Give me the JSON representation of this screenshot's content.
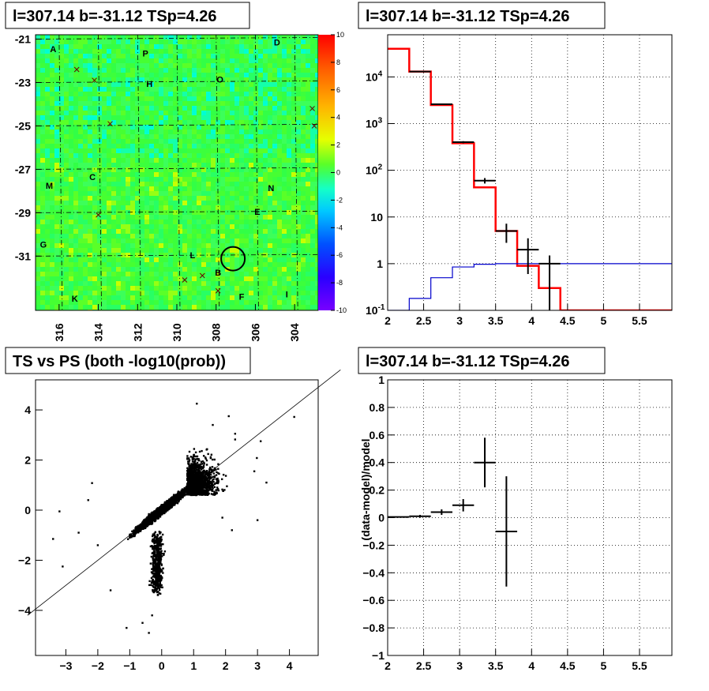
{
  "panels": {
    "top_left_title": "l=307.14 b=-31.12 TSp=4.26",
    "top_right_title": "l=307.14 b=-31.12 TSp=4.26",
    "bottom_left_title": "TS vs PS (both -log10(prob))",
    "bottom_right_title": "l=307.14 b=-31.12 TSp=4.26"
  },
  "colors": {
    "model_line": "#ff0000",
    "blue_line": "#0000cc",
    "data": "#000000",
    "grid": "#000000"
  },
  "chart_data": [
    {
      "type": "heatmap",
      "title": "l=307.14 b=-31.12 TSp=4.26",
      "x_ticks": [
        "316",
        "314",
        "312",
        "310",
        "308",
        "306",
        "304"
      ],
      "y_ticks": [
        "-21",
        "-23",
        "-25",
        "-27",
        "-29",
        "-31"
      ],
      "xlim": [
        317.2,
        302.8
      ],
      "ylim": [
        -33.5,
        -20.8
      ],
      "colorbar": {
        "range": [
          -10,
          10
        ],
        "ticks": [
          "10",
          "8",
          "6",
          "4",
          "2",
          "0",
          "-2",
          "-4",
          "-6",
          "-8",
          "-10"
        ]
      },
      "circle": {
        "l": 307.14,
        "b": -31.12
      },
      "labels": [
        {
          "t": "A",
          "l": 316.3,
          "b": -21.6
        },
        {
          "t": "P",
          "l": 311.6,
          "b": -21.8
        },
        {
          "t": "D",
          "l": 304.9,
          "b": -21.3
        },
        {
          "t": "H",
          "l": 311.4,
          "b": -23.2
        },
        {
          "t": "O",
          "l": 307.8,
          "b": -23.0
        },
        {
          "t": "M",
          "l": 316.5,
          "b": -27.9
        },
        {
          "t": "C",
          "l": 314.3,
          "b": -27.5
        },
        {
          "t": "N",
          "l": 305.2,
          "b": -28.0
        },
        {
          "t": "E",
          "l": 305.9,
          "b": -29.1
        },
        {
          "t": "G",
          "l": 316.8,
          "b": -30.6
        },
        {
          "t": "L",
          "l": 309.2,
          "b": -31.1
        },
        {
          "t": "B",
          "l": 307.9,
          "b": -31.9
        },
        {
          "t": "K",
          "l": 315.2,
          "b": -33.1
        },
        {
          "t": "F",
          "l": 306.7,
          "b": -33.0
        },
        {
          "t": "I",
          "l": 304.4,
          "b": -32.9
        }
      ],
      "crosses": [
        {
          "l": 315.1,
          "b": -22.4
        },
        {
          "l": 314.2,
          "b": -22.9
        },
        {
          "l": 313.4,
          "b": -24.9
        },
        {
          "l": 314.0,
          "b": -29.1
        },
        {
          "l": 303.1,
          "b": -24.2
        },
        {
          "l": 303.0,
          "b": -25.0
        },
        {
          "l": 309.6,
          "b": -32.1
        },
        {
          "l": 308.7,
          "b": -31.9
        },
        {
          "l": 307.9,
          "b": -32.6
        }
      ]
    },
    {
      "type": "line",
      "title": "l=307.14 b=-31.12 TSp=4.26",
      "xlim": [
        2,
        5.95
      ],
      "ylim": [
        0.1,
        80000
      ],
      "yscale": "log",
      "x_ticks": [
        "2",
        "2.5",
        "3",
        "3.5",
        "4",
        "4.5",
        "5",
        "5.5"
      ],
      "y_ticks": [
        "10^-1",
        "1",
        "10",
        "10^2",
        "10^3",
        "10^4"
      ],
      "bin_edges": [
        2,
        2.3,
        2.6,
        2.9,
        3.2,
        3.5,
        3.8,
        4.1,
        4.4,
        4.7,
        5.0,
        5.3,
        5.6,
        5.95
      ],
      "series": [
        {
          "name": "",
          "role": "model",
          "values": [
            40000,
            13000,
            2500,
            380,
            43,
            5,
            0.9,
            0.3,
            0.1,
            0.1,
            0.1,
            0.1,
            0.1
          ]
        },
        {
          "name": "",
          "role": "blue",
          "values": [
            0.1,
            0.18,
            0.5,
            0.85,
            0.97,
            1.0,
            1.0,
            1.0,
            1.0,
            1.0,
            1.0,
            1.0,
            1.0
          ]
        }
      ],
      "points": [
        {
          "x": 2.45,
          "y": 13000,
          "xerr": 0.15,
          "ylo": 12800,
          "yhi": 13200
        },
        {
          "x": 2.75,
          "y": 2600,
          "xerr": 0.15,
          "ylo": 2550,
          "yhi": 2650
        },
        {
          "x": 3.05,
          "y": 400,
          "xerr": 0.15,
          "ylo": 380,
          "yhi": 420
        },
        {
          "x": 3.35,
          "y": 60,
          "xerr": 0.15,
          "ylo": 52,
          "yhi": 68
        },
        {
          "x": 3.65,
          "y": 5,
          "xerr": 0.15,
          "ylo": 2.8,
          "yhi": 7.2
        },
        {
          "x": 3.95,
          "y": 2,
          "xerr": 0.15,
          "ylo": 0.6,
          "yhi": 3.5
        },
        {
          "x": 4.25,
          "y": 1,
          "xerr": 0.15,
          "ylo": 0.1,
          "yhi": 1.5
        }
      ]
    },
    {
      "type": "scatter",
      "title": "TS vs PS (both -log10(prob))",
      "xlim": [
        -3.95,
        4.9
      ],
      "ylim": [
        -5.8,
        5.2
      ],
      "x_ticks": [
        "-3",
        "-2",
        "-1",
        "0",
        "1",
        "2",
        "3",
        "4"
      ],
      "y_ticks": [
        "4",
        "2",
        "0",
        "-2",
        "-4"
      ],
      "reference_line": {
        "slope": 1,
        "intercept": 0
      },
      "core_counts": {
        "blob": 5500,
        "tail": 500,
        "high": 1400
      },
      "outliers": [
        [
          4.15,
          3.72
        ],
        [
          2.3,
          2.82
        ],
        [
          2.98,
          2.08
        ],
        [
          2.1,
          3.75
        ],
        [
          2.3,
          3.05
        ],
        [
          3.28,
          1.1
        ],
        [
          2.9,
          1.55
        ],
        [
          1.1,
          4.25
        ],
        [
          -2.18,
          1.08
        ],
        [
          -3.4,
          -1.15
        ],
        [
          -3.1,
          -2.25
        ],
        [
          -3.2,
          -0.05
        ],
        [
          -1.1,
          -4.7
        ],
        [
          -0.4,
          -4.9
        ],
        [
          -0.6,
          -4.5
        ],
        [
          -2.3,
          0.4
        ],
        [
          -2.6,
          -0.9
        ],
        [
          -2.0,
          -1.4
        ],
        [
          3.0,
          -0.4
        ],
        [
          2.2,
          -0.8
        ],
        [
          1.9,
          -0.3
        ],
        [
          1.6,
          3.4
        ],
        [
          3.1,
          2.75
        ],
        [
          -1.6,
          -3.2
        ],
        [
          -0.3,
          -4.2
        ]
      ]
    },
    {
      "type": "scatter",
      "title": "l=307.14 b=-31.12 TSp=4.26",
      "xlim": [
        2,
        5.95
      ],
      "ylim": [
        -1,
        1
      ],
      "x_ticks": [
        "2",
        "2.5",
        "3",
        "3.5",
        "4",
        "4.5",
        "5",
        "5.5"
      ],
      "y_ticks": [
        "1",
        "0.8",
        "0.6",
        "0.4",
        "0.2",
        "0",
        "−0.2",
        "−0.4",
        "−0.6",
        "−0.8",
        "−1"
      ],
      "ylabel": "(data-model)/model",
      "points": [
        {
          "x": 2.15,
          "y": 0.005,
          "xerr": 0.15,
          "yerr": 0.005
        },
        {
          "x": 2.45,
          "y": 0.01,
          "xerr": 0.15,
          "yerr": 0.01
        },
        {
          "x": 2.75,
          "y": 0.04,
          "xerr": 0.15,
          "yerr": 0.02
        },
        {
          "x": 3.05,
          "y": 0.09,
          "xerr": 0.15,
          "yerr": 0.045
        },
        {
          "x": 3.35,
          "y": 0.4,
          "xerr": 0.15,
          "yerr": 0.18
        },
        {
          "x": 3.65,
          "y": -0.1,
          "xerr": 0.15,
          "yerr": 0.4
        }
      ]
    }
  ]
}
